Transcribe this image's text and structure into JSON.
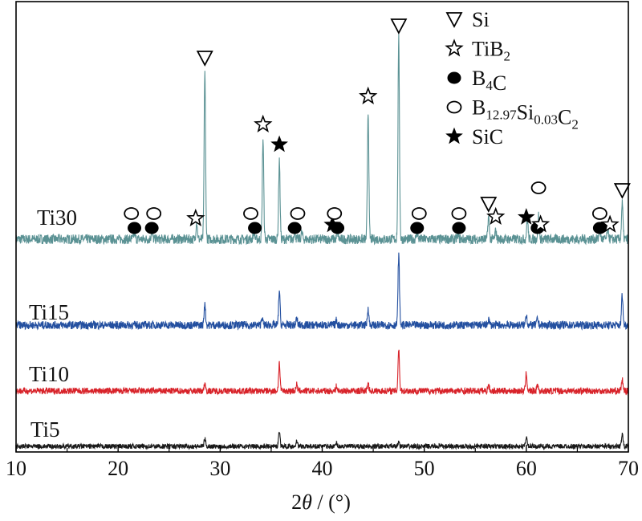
{
  "chart_data": {
    "type": "line",
    "title": "",
    "xlabel": {
      "prefix": "2",
      "italic": "θ",
      "suffix": " / (°)"
    },
    "ylabel": "",
    "xlim": [
      10,
      70
    ],
    "x_ticks": [
      10,
      20,
      30,
      40,
      50,
      60,
      70
    ],
    "x_tick_labels": [
      "10",
      "20",
      "30",
      "40",
      "50",
      "60",
      "70"
    ],
    "y_ticks_shown": false,
    "grid": false,
    "legend_position": "top-right",
    "legend": [
      {
        "symbol": "triangle-down-open",
        "text": "Si",
        "parts": [
          [
            "Si",
            ""
          ]
        ]
      },
      {
        "symbol": "star-open",
        "text": "TiB2",
        "parts": [
          [
            "TiB",
            ""
          ],
          [
            "2",
            "sub"
          ]
        ]
      },
      {
        "symbol": "circle-filled",
        "text": "B4C",
        "parts": [
          [
            "B",
            ""
          ],
          [
            "4",
            "sub"
          ],
          [
            "C",
            ""
          ]
        ]
      },
      {
        "symbol": "circle-open",
        "text": "B12.97Si0.03C2",
        "parts": [
          [
            "B",
            ""
          ],
          [
            "12.97",
            "sub"
          ],
          [
            "Si",
            ""
          ],
          [
            "0.03",
            "sub"
          ],
          [
            "C",
            ""
          ],
          [
            "2",
            "sub"
          ]
        ]
      },
      {
        "symbol": "star-filled",
        "text": "SiC",
        "parts": [
          [
            "SiC",
            ""
          ]
        ]
      }
    ],
    "series": [
      {
        "name": "Ti30",
        "color": "#5b9294",
        "noise": 6,
        "peaks": [
          [
            21.6,
            8
          ],
          [
            23.3,
            10
          ],
          [
            27.7,
            22
          ],
          [
            28.5,
            210
          ],
          [
            33.3,
            10
          ],
          [
            34.2,
            125
          ],
          [
            35.8,
            100
          ],
          [
            37.3,
            12
          ],
          [
            38.0,
            8
          ],
          [
            41.5,
            8
          ],
          [
            44.5,
            160
          ],
          [
            47.5,
            250
          ],
          [
            49.3,
            8
          ],
          [
            53.3,
            6
          ],
          [
            56.3,
            28
          ],
          [
            57.0,
            10
          ],
          [
            60.1,
            26
          ],
          [
            61.2,
            30
          ],
          [
            67.2,
            12
          ],
          [
            68.0,
            14
          ],
          [
            69.4,
            45
          ]
        ]
      },
      {
        "name": "Ti15",
        "color": "#2450a0",
        "noise": 5,
        "peaks": [
          [
            28.5,
            28
          ],
          [
            34.1,
            10
          ],
          [
            35.8,
            44
          ],
          [
            37.5,
            8
          ],
          [
            41.4,
            6
          ],
          [
            44.5,
            22
          ],
          [
            47.5,
            88
          ],
          [
            56.3,
            8
          ],
          [
            60.0,
            14
          ],
          [
            61.1,
            8
          ],
          [
            69.4,
            38
          ]
        ]
      },
      {
        "name": "Ti10",
        "color": "#d8232a",
        "noise": 4,
        "peaks": [
          [
            28.5,
            10
          ],
          [
            35.8,
            35
          ],
          [
            37.5,
            8
          ],
          [
            41.4,
            6
          ],
          [
            44.5,
            10
          ],
          [
            47.5,
            53
          ],
          [
            56.3,
            8
          ],
          [
            60.0,
            22
          ],
          [
            61.1,
            8
          ],
          [
            69.4,
            14
          ]
        ]
      },
      {
        "name": "Ti5",
        "color": "#1a1a1a",
        "noise": 3,
        "peaks": [
          [
            28.5,
            10
          ],
          [
            35.8,
            20
          ],
          [
            37.5,
            8
          ],
          [
            41.4,
            4
          ],
          [
            47.5,
            6
          ],
          [
            60.0,
            12
          ],
          [
            69.4,
            16
          ]
        ]
      }
    ],
    "phase_markers": [
      {
        "phase": "circle-open",
        "x": 21.3
      },
      {
        "phase": "circle-filled",
        "x": 21.6
      },
      {
        "phase": "circle-open",
        "x": 23.5
      },
      {
        "phase": "circle-filled",
        "x": 23.3
      },
      {
        "phase": "star-open",
        "x": 27.6
      },
      {
        "phase": "triangle-down-open",
        "x": 28.5
      },
      {
        "phase": "circle-open",
        "x": 33.0
      },
      {
        "phase": "circle-filled",
        "x": 33.4
      },
      {
        "phase": "star-open",
        "x": 34.2
      },
      {
        "phase": "star-filled",
        "x": 35.8
      },
      {
        "phase": "circle-open",
        "x": 37.6
      },
      {
        "phase": "circle-filled",
        "x": 37.3
      },
      {
        "phase": "star-filled",
        "x": 41.0
      },
      {
        "phase": "circle-open",
        "x": 41.2
      },
      {
        "phase": "circle-filled",
        "x": 41.5
      },
      {
        "phase": "star-open",
        "x": 44.5
      },
      {
        "phase": "triangle-down-open",
        "x": 47.5
      },
      {
        "phase": "circle-open",
        "x": 49.5
      },
      {
        "phase": "circle-filled",
        "x": 49.3
      },
      {
        "phase": "circle-open",
        "x": 53.4
      },
      {
        "phase": "circle-filled",
        "x": 53.4
      },
      {
        "phase": "triangle-down-open",
        "x": 56.3
      },
      {
        "phase": "star-open",
        "x": 57.0
      },
      {
        "phase": "star-filled",
        "x": 60.0
      },
      {
        "phase": "circle-open",
        "x": 61.2
      },
      {
        "phase": "circle-filled",
        "x": 61.1
      },
      {
        "phase": "star-open",
        "x": 61.4
      },
      {
        "phase": "circle-open",
        "x": 67.2
      },
      {
        "phase": "circle-filled",
        "x": 67.2
      },
      {
        "phase": "star-open",
        "x": 68.2
      },
      {
        "phase": "triangle-down-open",
        "x": 69.4
      }
    ]
  }
}
